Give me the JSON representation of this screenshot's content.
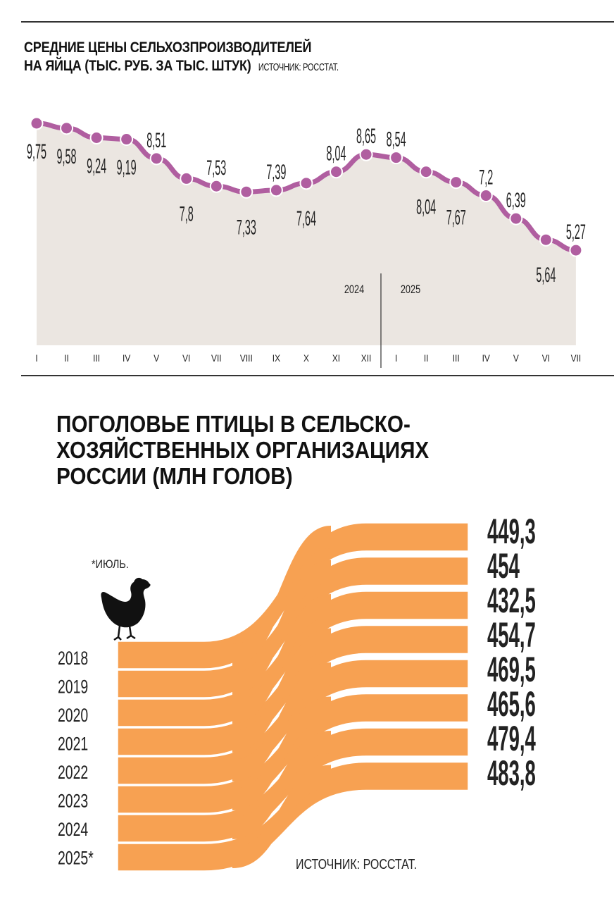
{
  "chart_data": [
    {
      "type": "line",
      "title": "СРЕДНИЕ ЦЕНЫ СЕЛЬХОЗПРОИЗВОДИТЕЛЕЙ",
      "title2": "НА ЯЙЦА (ТЫС. РУБ. ЗА ТЫС. ШТУК)",
      "source": "ИСТОЧНИК:  РОССТАТ.",
      "categories": [
        "I",
        "II",
        "III",
        "IV",
        "V",
        "VI",
        "VII",
        "VIII",
        "IX",
        "X",
        "XI",
        "XII",
        "I",
        "II",
        "III",
        "IV",
        "V",
        "VI",
        "VII"
      ],
      "values": [
        9.75,
        9.58,
        9.24,
        9.19,
        8.51,
        7.8,
        7.53,
        7.33,
        7.39,
        7.64,
        8.04,
        8.65,
        8.54,
        8.04,
        7.67,
        7.2,
        6.39,
        5.64,
        5.27
      ],
      "labels": [
        "9,75",
        "9,58",
        "9,24",
        "9,19",
        "8,51",
        "7,8",
        "7,53",
        "7,33",
        "7,39",
        "7,64",
        "8,04",
        "8,65",
        "8,54",
        "8,04",
        "7,67",
        "7,2",
        "6,39",
        "5,64",
        "5,27"
      ],
      "years": [
        "2024",
        "2025"
      ],
      "colors": {
        "line": "#b05ea0",
        "fill": "#ebe6e1"
      }
    },
    {
      "type": "sankey",
      "title_lines": [
        "ПОГОЛОВЬЕ ПТИЦЫ В СЕЛЬСКО-",
        "ХОЗЯЙСТВЕННЫХ ОРГАНИЗАЦИЯХ",
        "РОССИИ (МЛН ГОЛОВ)"
      ],
      "note": "*ИЮЛЬ.",
      "source": "ИСТОЧНИК:  РОССТАТ.",
      "categories": [
        "2018",
        "2019",
        "2020",
        "2021",
        "2022",
        "2023",
        "2024",
        "2025*"
      ],
      "values": [
        449.3,
        454,
        432.5,
        454.7,
        469.5,
        465.6,
        479.4,
        483.8
      ],
      "labels": [
        "449,3",
        "454",
        "432,5",
        "454,7",
        "469,5",
        "465,6",
        "479,4",
        "483,8"
      ],
      "icon": "chicken-icon",
      "colors": {
        "band": "#f7a152"
      }
    }
  ]
}
